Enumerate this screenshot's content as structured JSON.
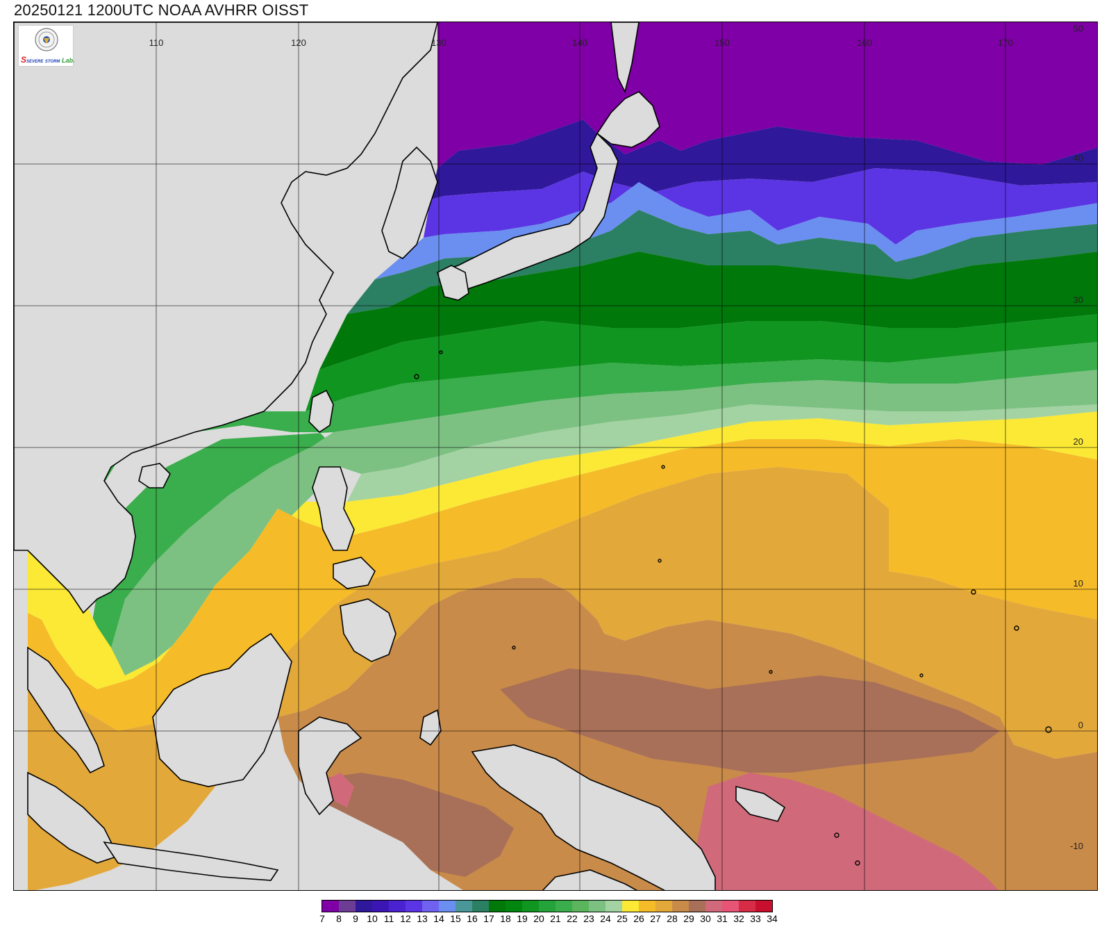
{
  "title": "20250121 1200UTC NOAA AVHRR OISST",
  "logo": {
    "text_s": "S",
    "text_severe": "SEVERE",
    "text_storm": "STORM",
    "text_lab": "Lab."
  },
  "map": {
    "type": "sea-surface-temperature",
    "region": "Western North Pacific",
    "lon_ticks": [
      "110",
      "120",
      "130",
      "140",
      "150",
      "160",
      "170"
    ],
    "lat_ticks": [
      "50",
      "40",
      "30",
      "20",
      "10",
      "0",
      "-10"
    ],
    "land_color": "#dcdcdc",
    "coast_color": "#000000",
    "grid_color": "#000000"
  },
  "colorbar": {
    "labels": [
      "7",
      "8",
      "9",
      "10",
      "11",
      "12",
      "13",
      "14",
      "15",
      "16",
      "17",
      "18",
      "19",
      "20",
      "21",
      "22",
      "23",
      "24",
      "25",
      "26",
      "27",
      "28",
      "29",
      "30",
      "31",
      "32",
      "33",
      "34"
    ],
    "colors": [
      "#7f00a6",
      "#6d3c95",
      "#30189a",
      "#3c16b4",
      "#4b22cf",
      "#5b35e3",
      "#6f62f0",
      "#6b8ff0",
      "#4a9698",
      "#2b7f62",
      "#00780a",
      "#00860f",
      "#109620",
      "#24a33a",
      "#3aad4c",
      "#5ab55d",
      "#7cc182",
      "#a4d3a3",
      "#fbe936",
      "#f6bb29",
      "#e3a83a",
      "#c98b4a",
      "#a87058",
      "#d06a7a",
      "#e75476",
      "#d62c45",
      "#c8102e"
    ]
  },
  "chart_data": {
    "type": "heatmap",
    "title": "20250121 1200UTC NOAA AVHRR OISST",
    "x_ticks": [
      110,
      120,
      130,
      140,
      150,
      160,
      170
    ],
    "y_ticks": [
      50,
      40,
      30,
      20,
      10,
      0,
      -10
    ],
    "colorbar_values": [
      7,
      8,
      9,
      10,
      11,
      12,
      13,
      14,
      15,
      16,
      17,
      18,
      19,
      20,
      21,
      22,
      23,
      24,
      25,
      26,
      27,
      28,
      29,
      30,
      31,
      32,
      33,
      34
    ]
  }
}
